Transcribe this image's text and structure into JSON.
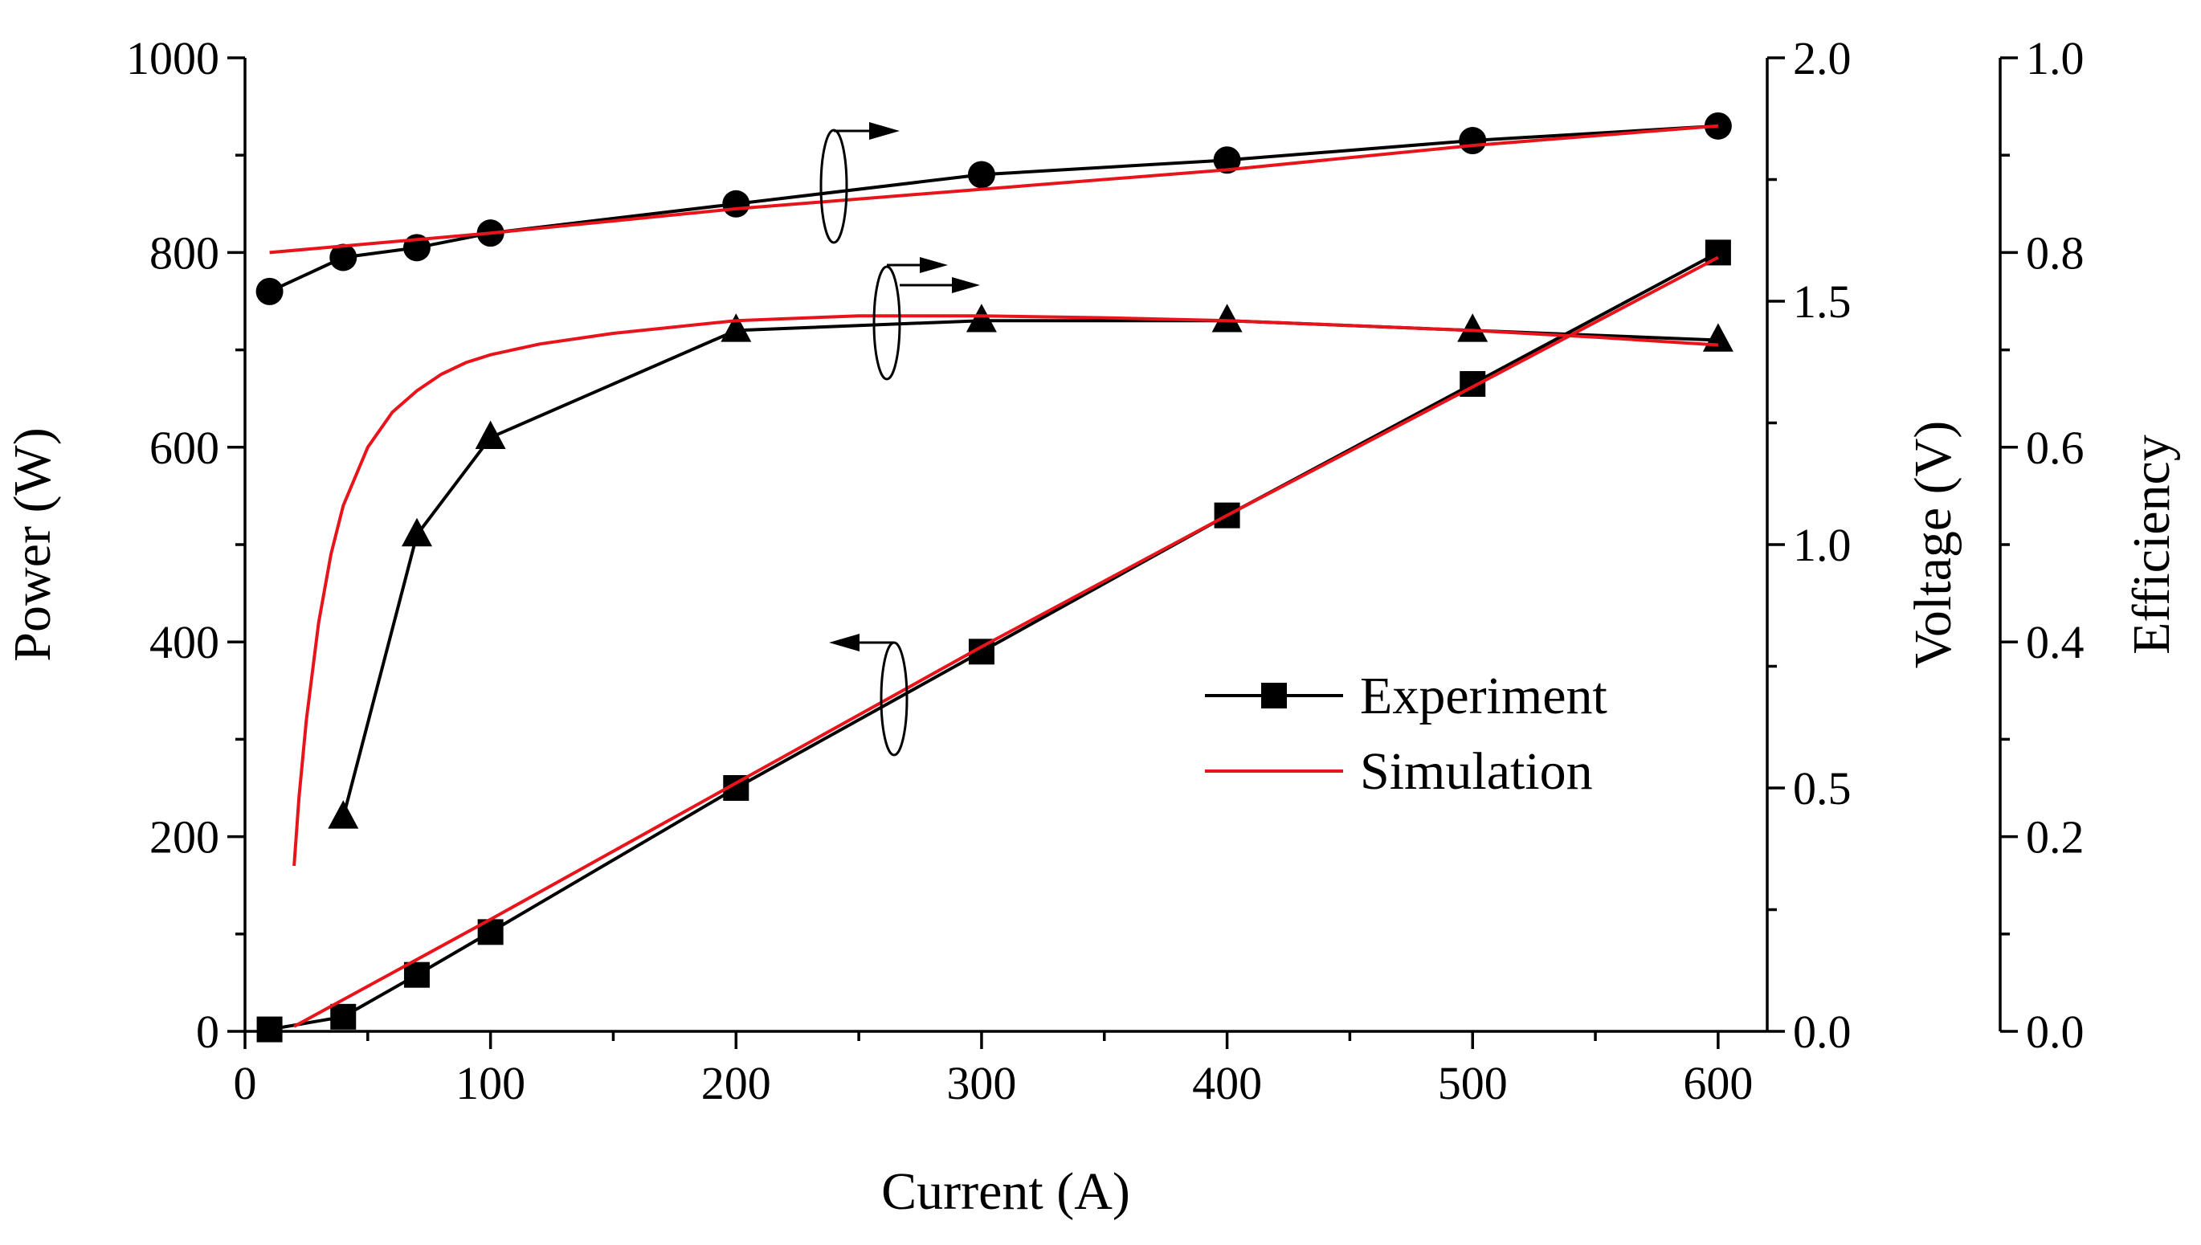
{
  "chart_data": {
    "type": "line",
    "title": "",
    "xlabel": "Current (A)",
    "xlim": [
      0,
      620
    ],
    "xticks": [
      "0",
      "100",
      "200",
      "300",
      "400",
      "500",
      "600"
    ],
    "axes": {
      "power": {
        "label": "Power (W)",
        "side": "left",
        "lim": [
          0,
          1000
        ],
        "ticks": [
          "0",
          "200",
          "400",
          "600",
          "800",
          "1000"
        ]
      },
      "voltage": {
        "label": "Voltage (V)",
        "side": "right",
        "lim": [
          0,
          2
        ],
        "ticks": [
          "0.0",
          "0.5",
          "1.0",
          "1.5",
          "2.0"
        ]
      },
      "efficiency": {
        "label": "Efficiency",
        "side": "right-offset",
        "lim": [
          0,
          1
        ],
        "ticks": [
          "0.0",
          "0.2",
          "0.4",
          "0.6",
          "0.8",
          "1.0"
        ]
      }
    },
    "series": [
      {
        "name": "Experiment (Voltage)",
        "axis": "voltage",
        "marker": "circle",
        "style": "experiment",
        "x": [
          10,
          40,
          70,
          100,
          200,
          300,
          400,
          500,
          600
        ],
        "y": [
          1.52,
          1.59,
          1.61,
          1.64,
          1.7,
          1.76,
          1.79,
          1.83,
          1.86
        ]
      },
      {
        "name": "Simulation (Voltage)",
        "axis": "voltage",
        "style": "simulation",
        "x": [
          10,
          100,
          200,
          300,
          400,
          500,
          600
        ],
        "y": [
          1.6,
          1.64,
          1.69,
          1.73,
          1.77,
          1.82,
          1.86
        ]
      },
      {
        "name": "Experiment (Efficiency)",
        "axis": "efficiency",
        "marker": "triangle",
        "style": "experiment",
        "x": [
          40,
          70,
          100,
          200,
          300,
          400,
          500,
          600
        ],
        "y": [
          0.22,
          0.51,
          0.61,
          0.72,
          0.73,
          0.73,
          0.72,
          0.71
        ]
      },
      {
        "name": "Simulation (Efficiency)",
        "axis": "efficiency",
        "style": "simulation",
        "x": [
          20,
          22,
          25,
          30,
          35,
          40,
          50,
          60,
          70,
          80,
          90,
          100,
          120,
          150,
          200,
          250,
          300,
          350,
          400,
          450,
          500,
          550,
          600
        ],
        "y": [
          0.17,
          0.24,
          0.32,
          0.42,
          0.49,
          0.54,
          0.6,
          0.636,
          0.658,
          0.675,
          0.687,
          0.695,
          0.706,
          0.717,
          0.73,
          0.735,
          0.735,
          0.733,
          0.73,
          0.725,
          0.72,
          0.713,
          0.705
        ]
      },
      {
        "name": "Experiment (Power)",
        "axis": "power",
        "marker": "square",
        "style": "experiment",
        "x": [
          10,
          40,
          70,
          100,
          200,
          300,
          400,
          500,
          600
        ],
        "y": [
          2,
          15,
          58,
          102,
          250,
          390,
          530,
          665,
          800
        ]
      },
      {
        "name": "Simulation (Power)",
        "axis": "power",
        "style": "simulation",
        "x": [
          20,
          100,
          200,
          300,
          400,
          500,
          600
        ],
        "y": [
          5,
          115,
          255,
          395,
          530,
          662,
          795
        ]
      }
    ],
    "legend": {
      "position": "center-right",
      "entries": [
        "Experiment",
        "Simulation"
      ]
    },
    "annotations": [
      {
        "kind": "ellipse-arrow",
        "target": "voltage",
        "direction": "right"
      },
      {
        "kind": "ellipse-arrow",
        "target": "efficiency",
        "direction": "right"
      },
      {
        "kind": "ellipse-arrow",
        "target": "power",
        "direction": "left"
      }
    ],
    "colors": {
      "experiment": "#000000",
      "simulation": "#e8141b"
    }
  }
}
